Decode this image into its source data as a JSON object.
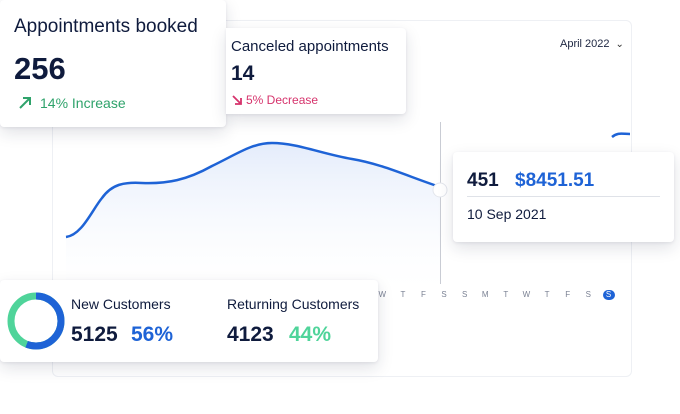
{
  "month_selector": {
    "value": "April 2022",
    "icon": "chevron-down-icon"
  },
  "appointments_booked": {
    "title": "Appointments booked",
    "value": "256",
    "delta_text": "14% Increase",
    "delta_icon": "arrow-up-right-icon",
    "delta_color": "#2fa36b"
  },
  "canceled_appointments": {
    "title": "Canceled appointments",
    "value": "14",
    "delta_text": "5% Decrease",
    "delta_icon": "arrow-down-right-icon",
    "delta_color": "#d6336c"
  },
  "tooltip": {
    "count": "451",
    "amount": "$8451.51",
    "date": "10 Sep 2021"
  },
  "weekday_axis": [
    "W",
    "T",
    "F",
    "S",
    "S",
    "M",
    "T",
    "W",
    "T",
    "F",
    "S",
    "S"
  ],
  "customers": {
    "new": {
      "label": "New Customers",
      "count": "5125",
      "percent": "56%",
      "share": 0.56,
      "color": "#1e63d6"
    },
    "returning": {
      "label": "Returning Customers",
      "count": "4123",
      "percent": "44%",
      "share": 0.44,
      "color": "#4fd49a"
    }
  },
  "colors": {
    "accent": "#1e63d6",
    "line": "#1e63d6",
    "area_fill": "#eef3fd"
  }
}
